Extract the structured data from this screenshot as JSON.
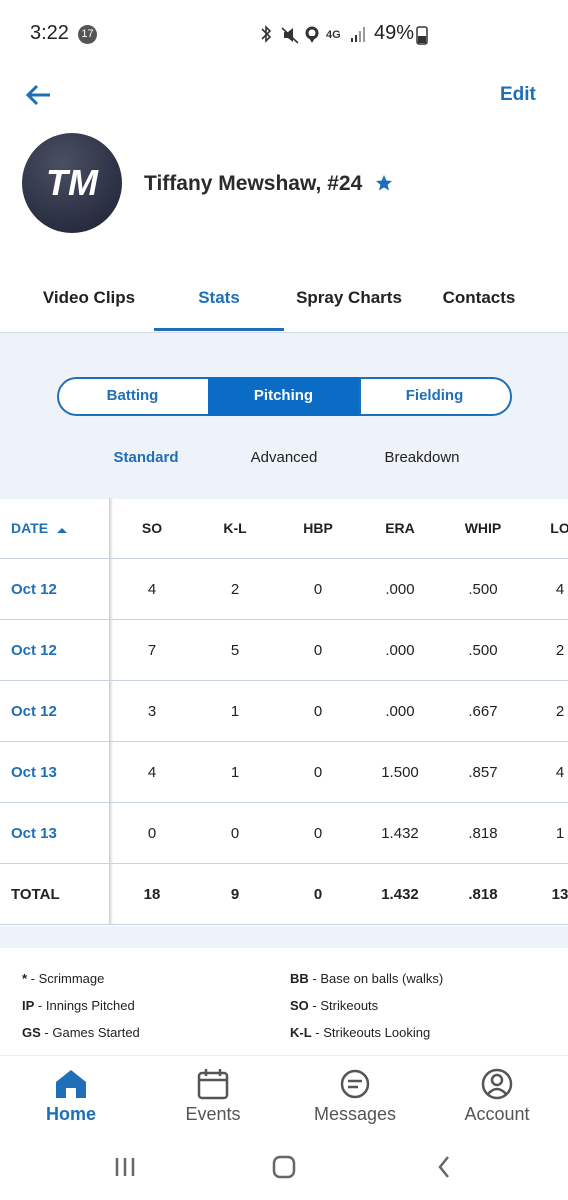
{
  "status_bar": {
    "time": "3:22",
    "notification_count": "17",
    "battery": "49%"
  },
  "header": {
    "edit": "Edit",
    "avatar_initials": "TM",
    "player_name": "Tiffany Mewshaw, #24"
  },
  "tabs": [
    "Video Clips",
    "Stats",
    "Spray Charts",
    "Contacts"
  ],
  "segments": [
    "Batting",
    "Pitching",
    "Fielding"
  ],
  "sub_tabs": [
    "Standard",
    "Advanced",
    "Breakdown"
  ],
  "table": {
    "columns": [
      "DATE",
      "SO",
      "K-L",
      "HBP",
      "ERA",
      "WHIP",
      "LO"
    ],
    "rows": [
      [
        "Oct 12",
        "4",
        "2",
        "0",
        ".000",
        ".500",
        "4"
      ],
      [
        "Oct 12",
        "7",
        "5",
        "0",
        ".000",
        ".500",
        "2"
      ],
      [
        "Oct 12",
        "3",
        "1",
        "0",
        ".000",
        ".667",
        "2"
      ],
      [
        "Oct 13",
        "4",
        "1",
        "0",
        "1.500",
        ".857",
        "4"
      ],
      [
        "Oct 13",
        "0",
        "0",
        "0",
        "1.432",
        ".818",
        "1"
      ]
    ],
    "total": [
      "TOTAL",
      "18",
      "9",
      "0",
      "1.432",
      ".818",
      "13"
    ]
  },
  "legend": [
    [
      "*",
      "Scrimmage"
    ],
    [
      "BB",
      "Base on balls (walks)"
    ],
    [
      "IP",
      "Innings Pitched"
    ],
    [
      "SO",
      "Strikeouts"
    ],
    [
      "GS",
      "Games Started"
    ],
    [
      "K-L",
      "Strikeouts Looking"
    ]
  ],
  "nav": [
    "Home",
    "Events",
    "Messages",
    "Account"
  ]
}
